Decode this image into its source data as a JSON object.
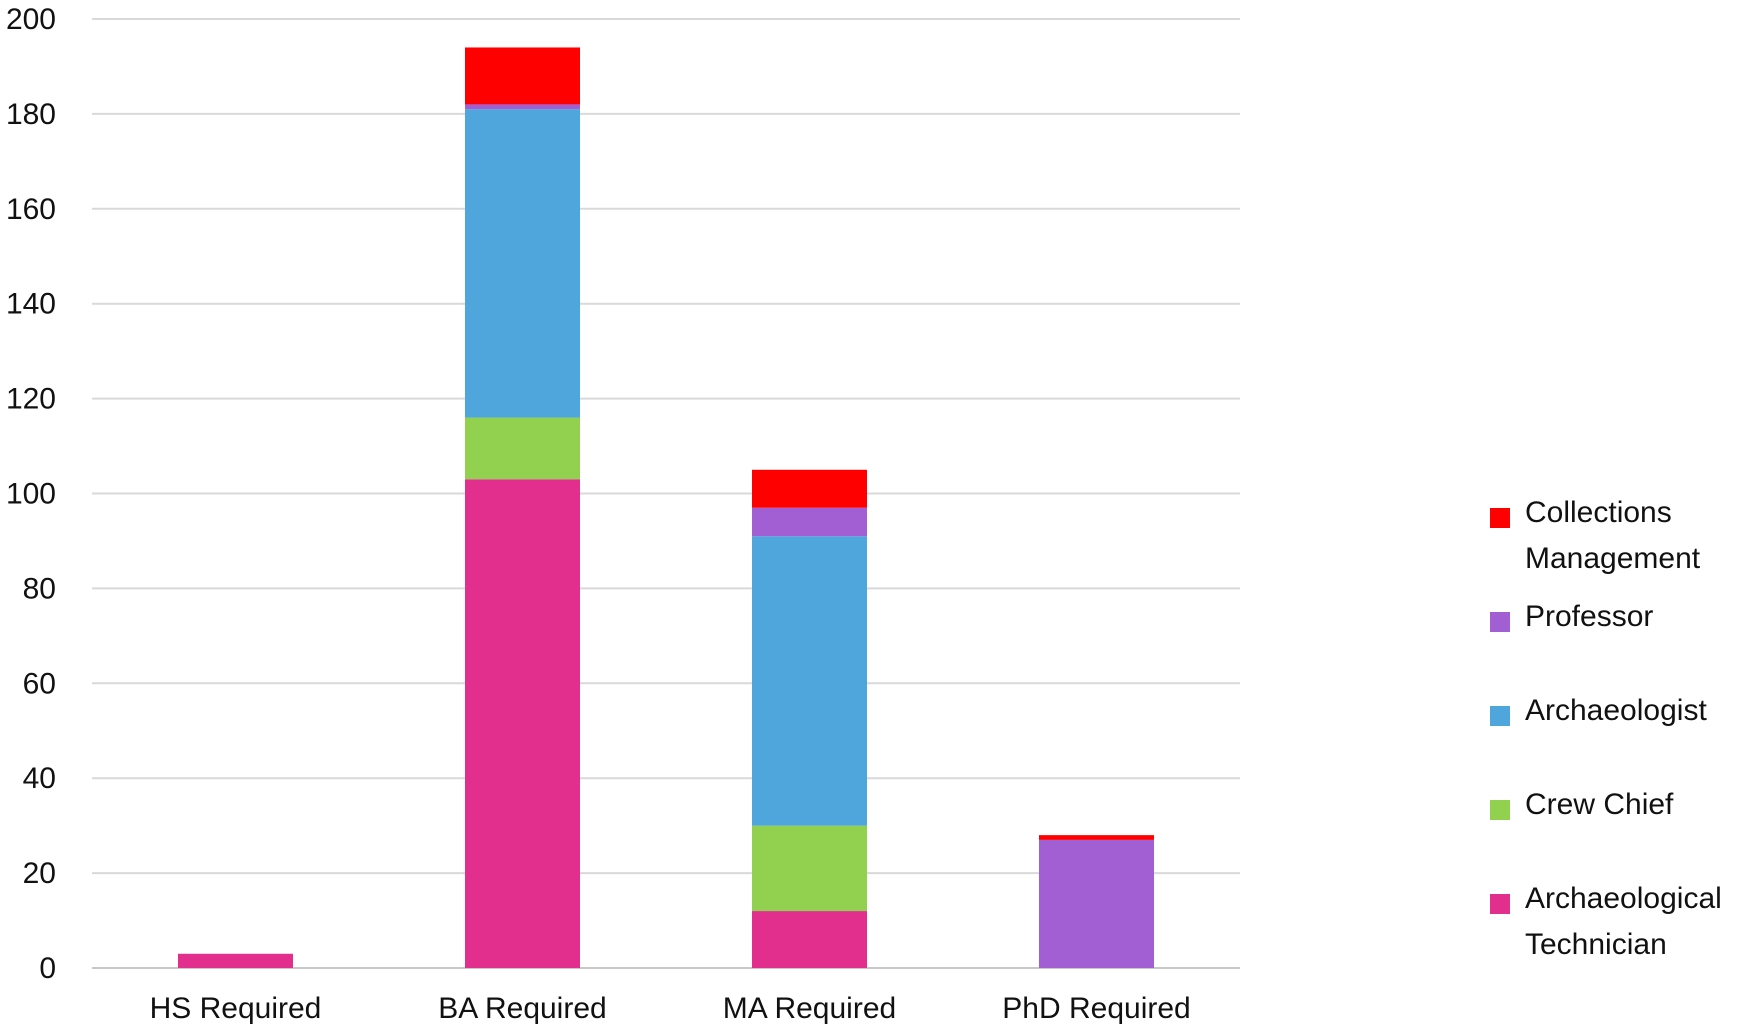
{
  "chart_data": {
    "type": "bar",
    "stacked": true,
    "title": "",
    "xlabel": "",
    "ylabel": "",
    "categories": [
      "HS Required",
      "BA Required",
      "MA Required",
      "PhD Required"
    ],
    "ylim": [
      0,
      200
    ],
    "yticks": [
      0,
      20,
      40,
      60,
      80,
      100,
      120,
      140,
      160,
      180,
      200
    ],
    "grid": true,
    "legend_position": "right",
    "series": [
      {
        "name": "Archaeological Technician",
        "color": "#E22E8C",
        "values": [
          3,
          103,
          12,
          0
        ]
      },
      {
        "name": "Crew Chief",
        "color": "#92D050",
        "values": [
          0,
          13,
          18,
          0
        ]
      },
      {
        "name": "Archaeologist",
        "color": "#4FA6DC",
        "values": [
          0,
          65,
          61,
          0
        ]
      },
      {
        "name": "Professor",
        "color": "#A25FD3",
        "values": [
          0,
          1,
          6,
          27
        ]
      },
      {
        "name": "Collections Management",
        "color": "#FF0000",
        "values": [
          0,
          12,
          8,
          1
        ]
      }
    ]
  }
}
